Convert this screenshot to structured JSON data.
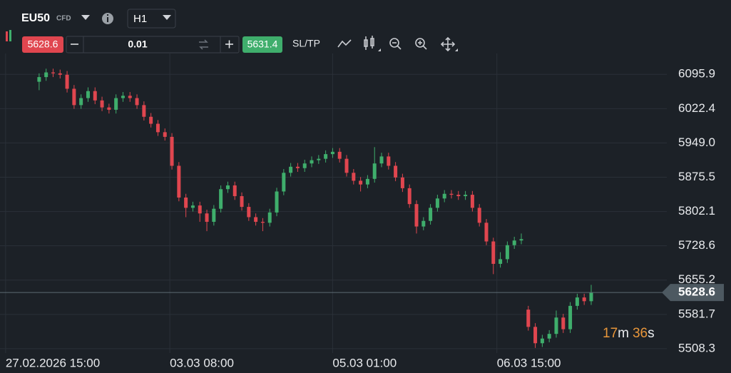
{
  "toolbar": {
    "symbol": "EU50",
    "instrument_type": "CFD",
    "timeframe": "H1",
    "sell_price": "5628.6",
    "lot": "0.01",
    "buy_price": "5631.4",
    "sltp": "SL/TP"
  },
  "overlay": {
    "minutes": "17",
    "minute_unit": "m",
    "seconds": "36",
    "second_unit": "s"
  },
  "chart_data": {
    "type": "candlestick",
    "x": [
      0,
      1,
      2,
      3,
      4,
      5,
      6,
      7,
      8,
      9,
      10,
      11,
      12,
      13,
      14,
      15,
      16,
      17,
      18,
      19,
      20,
      21,
      22,
      23,
      24,
      25,
      26,
      27,
      28,
      29,
      30,
      31,
      32,
      33,
      34,
      35,
      36,
      37,
      38,
      39,
      40,
      41,
      42,
      43,
      44,
      45,
      46,
      47,
      48,
      49,
      50,
      51,
      52,
      53,
      54,
      55,
      56,
      57,
      58,
      59,
      60,
      61,
      62,
      63,
      64,
      65,
      66,
      67,
      68,
      69,
      70,
      71,
      72,
      73,
      74,
      75,
      76,
      77,
      78,
      79
    ],
    "open": [
      6080,
      6090,
      6100,
      6098,
      6095,
      6065,
      6030,
      6045,
      6060,
      6040,
      6025,
      6020,
      6045,
      6050,
      6045,
      6030,
      6005,
      5990,
      5972,
      5962,
      5900,
      5832,
      5810,
      5815,
      5798,
      5780,
      5808,
      5850,
      5858,
      5835,
      5812,
      5790,
      5780,
      5778,
      5800,
      5845,
      5885,
      5898,
      5895,
      5905,
      5912,
      5915,
      5925,
      5930,
      5915,
      5885,
      5868,
      5860,
      5872,
      5905,
      5920,
      5900,
      5875,
      5852,
      5818,
      5770,
      5782,
      5810,
      5830,
      5840,
      5838,
      5835,
      5838,
      5810,
      5778,
      5738,
      5690,
      5700,
      5730,
      5740,
      5592,
      5555,
      5520,
      5530,
      5540,
      5575,
      5550,
      5600,
      5618,
      5610
    ],
    "high": [
      6098,
      6108,
      6108,
      6106,
      6103,
      6073,
      6053,
      6068,
      6068,
      6048,
      6033,
      6053,
      6058,
      6058,
      6053,
      6038,
      6013,
      5998,
      5980,
      5970,
      5908,
      5840,
      5823,
      5823,
      5806,
      5816,
      5858,
      5866,
      5866,
      5843,
      5820,
      5798,
      5788,
      5808,
      5853,
      5893,
      5906,
      5906,
      5913,
      5920,
      5923,
      5933,
      5938,
      5938,
      5923,
      5893,
      5876,
      5880,
      5940,
      5928,
      5928,
      5908,
      5883,
      5860,
      5826,
      5790,
      5818,
      5838,
      5848,
      5848,
      5846,
      5846,
      5846,
      5818,
      5786,
      5746,
      5715,
      5738,
      5748,
      5755,
      5600,
      5563,
      5538,
      5548,
      5590,
      5583,
      5608,
      5626,
      5626,
      5645
    ],
    "low": [
      6062,
      6082,
      6090,
      6087,
      6057,
      6022,
      6022,
      6037,
      6032,
      6017,
      6012,
      6012,
      6037,
      6037,
      6022,
      5997,
      5982,
      5964,
      5954,
      5892,
      5824,
      5790,
      5802,
      5780,
      5760,
      5772,
      5800,
      5842,
      5827,
      5804,
      5782,
      5772,
      5760,
      5770,
      5792,
      5837,
      5877,
      5887,
      5887,
      5897,
      5904,
      5907,
      5917,
      5907,
      5877,
      5860,
      5845,
      5852,
      5864,
      5897,
      5892,
      5867,
      5844,
      5810,
      5755,
      5762,
      5774,
      5802,
      5822,
      5830,
      5827,
      5827,
      5802,
      5770,
      5730,
      5668,
      5682,
      5692,
      5722,
      5732,
      5547,
      5510,
      5512,
      5522,
      5532,
      5542,
      5542,
      5592,
      5602,
      5602
    ],
    "close": [
      6090,
      6100,
      6098,
      6095,
      6065,
      6030,
      6045,
      6060,
      6040,
      6025,
      6020,
      6045,
      6050,
      6045,
      6030,
      6005,
      5990,
      5972,
      5962,
      5900,
      5832,
      5810,
      5815,
      5798,
      5780,
      5808,
      5850,
      5858,
      5835,
      5812,
      5790,
      5780,
      5778,
      5800,
      5845,
      5885,
      5898,
      5895,
      5905,
      5912,
      5915,
      5925,
      5930,
      5915,
      5885,
      5868,
      5860,
      5872,
      5905,
      5920,
      5900,
      5875,
      5852,
      5818,
      5770,
      5782,
      5810,
      5830,
      5840,
      5838,
      5835,
      5838,
      5810,
      5778,
      5738,
      5690,
      5700,
      5730,
      5740,
      5743,
      5555,
      5520,
      5530,
      5540,
      5575,
      5550,
      5600,
      5618,
      5610,
      5628.6
    ],
    "up_color": "#3fae6c",
    "down_color": "#e0464f",
    "xlim": [
      -5.6,
      88.8
    ],
    "xticks": [
      {
        "value": -4.8,
        "label": "27.02.2026 15:00"
      },
      {
        "value": 18.7,
        "label": "03.03 08:00"
      },
      {
        "value": 42,
        "label": "05.03 01:00"
      },
      {
        "value": 65.5,
        "label": "06.03 15:00"
      }
    ],
    "ylim": [
      5499,
      6194
    ],
    "yticks": [
      6095.9,
      6022.4,
      {
        "value": 5949,
        "label": "5949.0"
      },
      5875.5,
      5802.1,
      5728.6,
      5655.2,
      5581.7,
      5508.3
    ],
    "grid": true,
    "last_price": 5628.6
  }
}
